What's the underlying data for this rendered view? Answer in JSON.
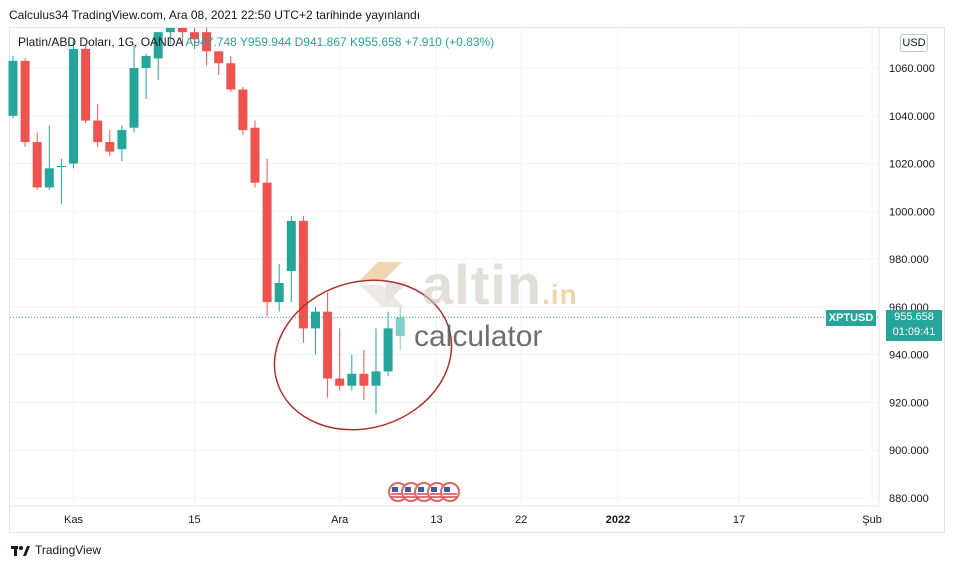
{
  "header": {
    "text": "Calculus34 TradingView.com, Ara 08, 2021 22:50 UTC+2 tarihinde yayınlandı"
  },
  "legend": {
    "symbol": "Platin/ABD Doları, 1G, OANDA",
    "open": "A947.748",
    "high": "Y959.944",
    "low": "D941.867",
    "close": "K955.658",
    "change": "+7.910 (+0.83%)"
  },
  "currency": "USD",
  "price_tag": {
    "symbol": "XPTUSD",
    "price": "955.658",
    "countdown": "01:09:41"
  },
  "watermark": {
    "brand": "altin",
    "tld": ".in",
    "sub": "calculator"
  },
  "footer": {
    "brand": "TradingView"
  },
  "colors": {
    "up": "#26a69a",
    "down": "#ef5350",
    "circle": "#b0302a"
  },
  "chart_data": {
    "type": "candlestick",
    "title": "",
    "ylim": [
      875,
      1075
    ],
    "y_ticks": [
      "880.000",
      "900.000",
      "920.000",
      "940.000",
      "960.000",
      "980.000",
      "1000.000",
      "1020.000",
      "1040.000",
      "1060.000"
    ],
    "y_tick_values": [
      880,
      900,
      920,
      940,
      960,
      980,
      1000,
      1020,
      1040,
      1060
    ],
    "x_ticks": [
      {
        "label": "Kas",
        "index": 5
      },
      {
        "label": "15",
        "index": 15
      },
      {
        "label": "Ara",
        "index": 27
      },
      {
        "label": "13",
        "index": 35
      },
      {
        "label": "22",
        "index": 42
      },
      {
        "label": "2022",
        "index": 50
      },
      {
        "label": "17",
        "index": 60
      },
      {
        "label": "Şub",
        "index": 71
      }
    ],
    "current_price": 955.658,
    "candles": [
      {
        "o": 1040,
        "h": 1065,
        "l": 1039,
        "c": 1063
      },
      {
        "o": 1063,
        "h": 1064,
        "l": 1027,
        "c": 1029
      },
      {
        "o": 1029,
        "h": 1033,
        "l": 1009,
        "c": 1010
      },
      {
        "o": 1010,
        "h": 1036,
        "l": 1009,
        "c": 1018
      },
      {
        "o": 1019,
        "h": 1022,
        "l": 1003,
        "c": 1019
      },
      {
        "o": 1020,
        "h": 1072,
        "l": 1018,
        "c": 1068
      },
      {
        "o": 1068,
        "h": 1070,
        "l": 1037,
        "c": 1038
      },
      {
        "o": 1038,
        "h": 1045,
        "l": 1027,
        "c": 1029
      },
      {
        "o": 1029,
        "h": 1034,
        "l": 1023,
        "c": 1025
      },
      {
        "o": 1026,
        "h": 1036,
        "l": 1021,
        "c": 1034
      },
      {
        "o": 1035,
        "h": 1070,
        "l": 1033,
        "c": 1060
      },
      {
        "o": 1060,
        "h": 1066,
        "l": 1047,
        "c": 1065
      },
      {
        "o": 1064,
        "h": 1075,
        "l": 1055,
        "c": 1075
      },
      {
        "o": 1075,
        "h": 1080,
        "l": 1070,
        "c": 1078
      },
      {
        "o": 1078,
        "h": 1082,
        "l": 1070,
        "c": 1075
      },
      {
        "o": 1075,
        "h": 1080,
        "l": 1068,
        "c": 1072
      },
      {
        "o": 1075,
        "h": 1080,
        "l": 1061,
        "c": 1067
      },
      {
        "o": 1067,
        "h": 1067,
        "l": 1057,
        "c": 1062
      },
      {
        "o": 1062,
        "h": 1065,
        "l": 1050,
        "c": 1051
      },
      {
        "o": 1051,
        "h": 1052,
        "l": 1032,
        "c": 1034
      },
      {
        "o": 1035,
        "h": 1038,
        "l": 1010,
        "c": 1012
      },
      {
        "o": 1012,
        "h": 1022,
        "l": 956,
        "c": 962
      },
      {
        "o": 962,
        "h": 978,
        "l": 958,
        "c": 970
      },
      {
        "o": 975,
        "h": 998,
        "l": 962,
        "c": 996
      },
      {
        "o": 996,
        "h": 998,
        "l": 945,
        "c": 951
      },
      {
        "o": 951,
        "h": 960,
        "l": 940,
        "c": 958
      },
      {
        "o": 958,
        "h": 966,
        "l": 922,
        "c": 930
      },
      {
        "o": 930,
        "h": 951,
        "l": 925,
        "c": 927
      },
      {
        "o": 927,
        "h": 940,
        "l": 925,
        "c": 932
      },
      {
        "o": 932,
        "h": 942,
        "l": 921,
        "c": 927
      },
      {
        "o": 927,
        "h": 951,
        "l": 915,
        "c": 933
      },
      {
        "o": 933,
        "h": 958,
        "l": 931,
        "c": 951
      },
      {
        "o": 947.748,
        "h": 959.944,
        "l": 941.867,
        "c": 955.658
      }
    ]
  }
}
